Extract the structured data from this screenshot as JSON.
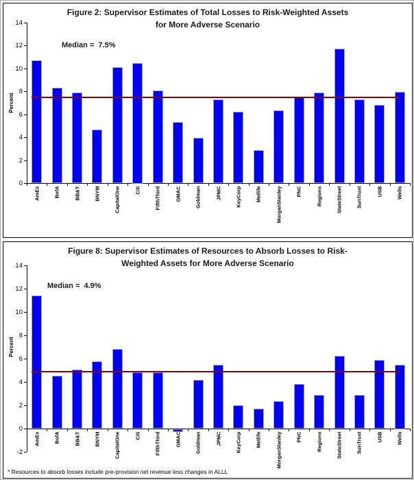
{
  "colors": {
    "bar_fill": "#0202f2",
    "bar_border": "#9e9ed6",
    "median_line": "#8B0000",
    "axis": "#000000"
  },
  "footnote": "* Resources to absorb losses include pre-provision net revenue less changes in ALLL",
  "chart_data": [
    {
      "type": "bar",
      "title_line1": "Figure 2: Supervisor Estimates of Total Losses to Risk-Weighted Assets",
      "title_line2": "for More Adverse Scenario",
      "ylabel": "Percent",
      "ylim": [
        0,
        14
      ],
      "yticks": [
        0,
        2,
        4,
        6,
        8,
        10,
        12,
        14
      ],
      "grid": false,
      "median_label": "Median =  7.5%",
      "median_value": 7.5,
      "categories": [
        "AmEx",
        "BofA",
        "BB&T",
        "BNYM",
        "CapitalOne",
        "Citi",
        "FifthThird",
        "GMAC",
        "Goldman",
        "JPMC",
        "KeyCorp",
        "Metlife",
        "MorganStanley",
        "PNC",
        "Regions",
        "StateStreet",
        "SunTrust",
        "USB",
        "Wells"
      ],
      "values": [
        10.7,
        8.3,
        7.9,
        4.65,
        10.1,
        10.5,
        8.05,
        5.3,
        3.95,
        7.3,
        6.25,
        2.9,
        6.35,
        7.5,
        7.9,
        11.75,
        7.3,
        6.8,
        7.95
      ]
    },
    {
      "type": "bar",
      "title_line1": "Figure 8: Supervisor Estimates of Resources to Absorb Losses to Risk-",
      "title_line2": "Weighted Assets for More Adverse Scenario",
      "ylabel": "Percent",
      "ylim": [
        -2,
        14
      ],
      "yticks": [
        -2,
        0,
        2,
        4,
        6,
        8,
        10,
        12,
        14
      ],
      "grid": false,
      "median_label": "Median =  4.9%",
      "median_value": 4.9,
      "categories": [
        "AmEx",
        "BofA",
        "BB&T",
        "BNYM",
        "CapitalOne",
        "Citi",
        "FifthThird",
        "GMAC",
        "Goldman",
        "JPMC",
        "KeyCorp",
        "Metlife",
        "MorganStanley",
        "PNC",
        "Regions",
        "StateStreet",
        "SunTrust",
        "USB",
        "Wells"
      ],
      "values": [
        11.4,
        4.55,
        5.05,
        5.75,
        6.8,
        4.85,
        4.85,
        -0.25,
        4.15,
        5.45,
        2.0,
        1.7,
        2.35,
        3.85,
        2.9,
        6.25,
        2.9,
        5.9,
        5.5
      ]
    }
  ]
}
